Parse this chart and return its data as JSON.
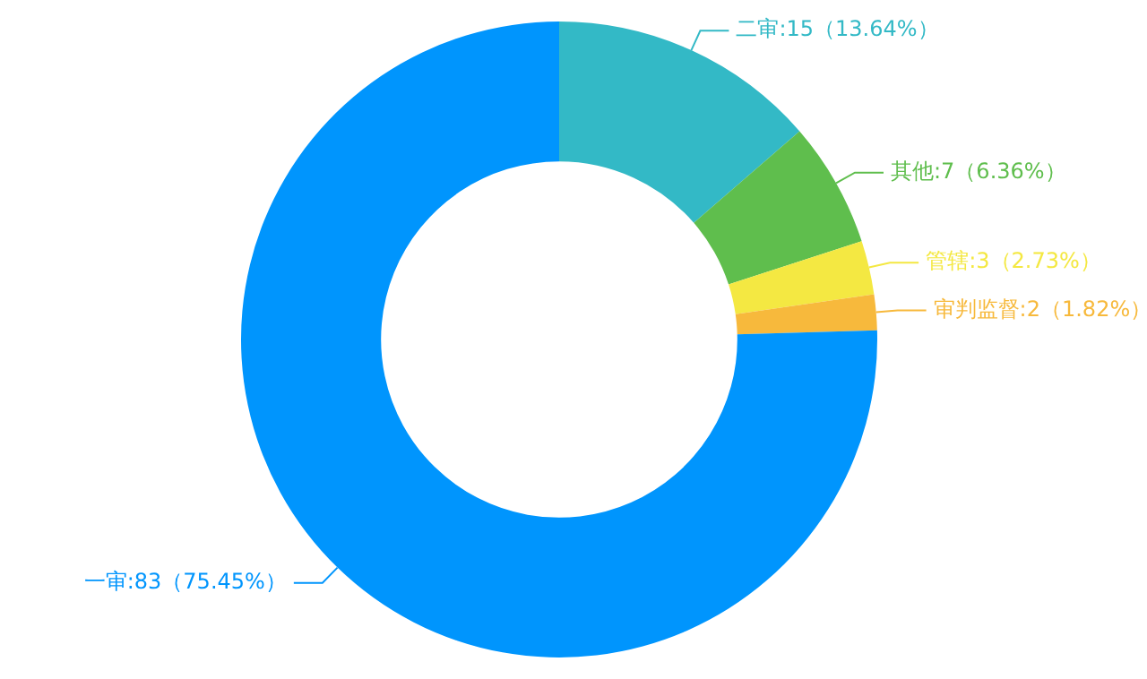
{
  "chart_data": {
    "type": "donut",
    "categories": [
      "二审",
      "其他",
      "管辖",
      "审判监督",
      "一审"
    ],
    "values": [
      15,
      7,
      3,
      2,
      83
    ],
    "colors": [
      "#33b9c6",
      "#5fbe4d",
      "#f4e842",
      "#f7b93c",
      "#0095fd"
    ],
    "value_labels": [
      ":15（13.64%）",
      ":7（6.36%）",
      ":3（2.73%）",
      ":2（1.82%）",
      ":83（75.45%）"
    ],
    "legend": false
  }
}
